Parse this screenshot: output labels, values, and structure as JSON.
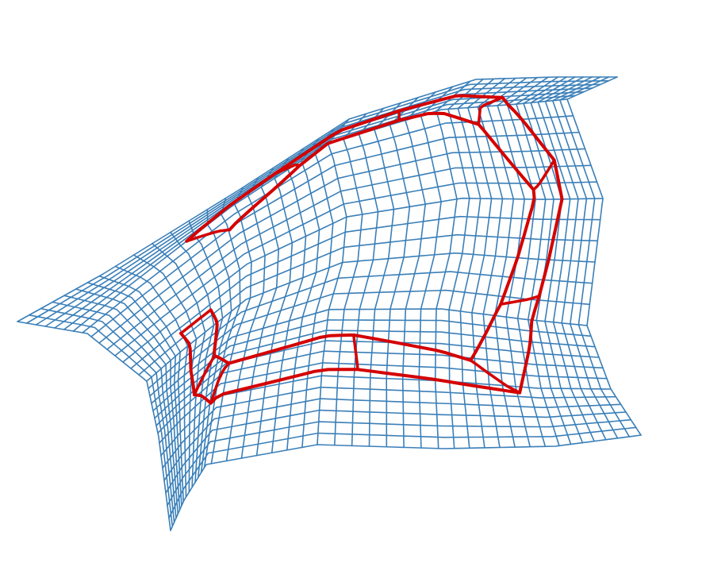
{
  "figure": {
    "kind": "wireframe surface with embedded curved frame",
    "colors": {
      "mesh": "#3a7fb8",
      "frame": "#d40000",
      "background": "#ffffff"
    },
    "mesh_grid": {
      "rows": 30,
      "cols": 44
    },
    "frame_grid": {
      "rows": 3,
      "cols": 9
    }
  }
}
